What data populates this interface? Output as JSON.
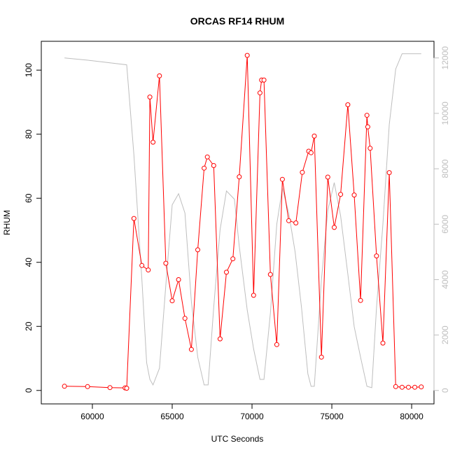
{
  "chart_data": {
    "type": "line",
    "title": "ORCAS RF14 RHUM",
    "xlabel": "UTC Seconds",
    "ylabel": "RHUM",
    "xlim": [
      56800,
      81400
    ],
    "ylim": [
      -4.2,
      109
    ],
    "y2lim": [
      -485,
      12600
    ],
    "x_ticks": [
      60000,
      65000,
      70000,
      75000,
      80000
    ],
    "y_ticks": [
      0,
      20,
      40,
      60,
      80,
      100
    ],
    "y2_ticks": [
      0,
      2000,
      4000,
      6000,
      8000,
      10000,
      12000
    ],
    "grid": false,
    "legend": "none",
    "series": [
      {
        "role": "primary",
        "color": "#ff0000",
        "marker": "open-circle",
        "x": [
          58250,
          59700,
          61100,
          62050,
          62150,
          62600,
          63100,
          63500,
          63600,
          63800,
          64200,
          64600,
          65000,
          65400,
          65800,
          66200,
          66600,
          67000,
          67200,
          67600,
          68000,
          68400,
          68800,
          69200,
          69700,
          70100,
          70500,
          70600,
          70750,
          71150,
          71550,
          71900,
          72300,
          72750,
          73150,
          73550,
          73700,
          73900,
          74350,
          74750,
          75150,
          75550,
          76000,
          76400,
          76800,
          77200,
          77250,
          77400,
          77800,
          78200,
          78600,
          79000,
          79400,
          79800,
          80200,
          80600
        ],
        "y": [
          1.3,
          1.2,
          0.9,
          0.8,
          0.7,
          53.7,
          39,
          37.6,
          91.6,
          77.5,
          98.2,
          39.7,
          28,
          34.6,
          22.5,
          12.8,
          43.9,
          69.4,
          72.9,
          70.2,
          16.1,
          36.9,
          41.1,
          66.7,
          104.6,
          29.7,
          92.9,
          96.9,
          96.9,
          36.2,
          14.3,
          65.9,
          53,
          52.3,
          68.1,
          74.7,
          74.2,
          79.4,
          10.4,
          66.6,
          50.9,
          61.2,
          89.2,
          61,
          28.1,
          85.9,
          82.3,
          75.6,
          42,
          14.8,
          68,
          1.2,
          1,
          1,
          1,
          1.1
        ]
      },
      {
        "role": "secondary",
        "axis": "right",
        "color": "#bebebe",
        "x": [
          58250,
          60000,
          62150,
          62600,
          63100,
          63400,
          63600,
          63800,
          64200,
          64600,
          65000,
          65400,
          65800,
          66200,
          66600,
          67000,
          67250,
          67600,
          68000,
          68400,
          68900,
          69200,
          69700,
          70100,
          70500,
          70750,
          71150,
          71550,
          71900,
          72300,
          72700,
          73100,
          73500,
          73700,
          73900,
          74350,
          74750,
          75150,
          75550,
          76000,
          76400,
          76800,
          77200,
          77500,
          77800,
          78200,
          78600,
          79000,
          79400,
          80600
        ],
        "y": [
          12000,
          11900,
          11750,
          8500,
          4000,
          1000,
          400,
          200,
          800,
          3800,
          6700,
          7100,
          6400,
          3200,
          1200,
          200,
          200,
          3000,
          5800,
          7200,
          6900,
          5200,
          2900,
          1500,
          400,
          400,
          2800,
          6000,
          7300,
          6400,
          5000,
          3000,
          600,
          150,
          150,
          4000,
          6500,
          7500,
          6300,
          4200,
          2300,
          1200,
          150,
          100,
          3000,
          6000,
          9600,
          11600,
          12150,
          12150
        ]
      }
    ]
  }
}
